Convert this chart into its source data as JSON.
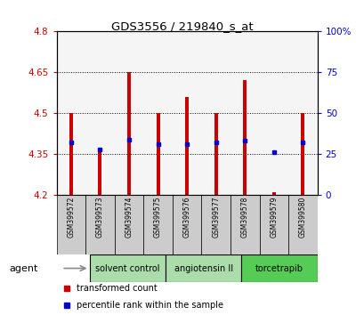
{
  "title": "GDS3556 / 219840_s_at",
  "samples": [
    "GSM399572",
    "GSM399573",
    "GSM399574",
    "GSM399575",
    "GSM399576",
    "GSM399577",
    "GSM399578",
    "GSM399579",
    "GSM399580"
  ],
  "transformed_count": [
    4.5,
    4.36,
    4.65,
    4.5,
    4.56,
    4.5,
    4.62,
    4.21,
    4.5
  ],
  "percentile_rank": [
    32,
    28,
    34,
    31,
    31,
    32,
    33,
    26,
    32
  ],
  "bar_bottom": 4.2,
  "ylim_left": [
    4.2,
    4.8
  ],
  "ylim_right": [
    0,
    100
  ],
  "yticks_left": [
    4.2,
    4.35,
    4.5,
    4.65,
    4.8
  ],
  "ytick_labels_left": [
    "4.2",
    "4.35",
    "4.5",
    "4.65",
    "4.8"
  ],
  "yticks_right": [
    0,
    25,
    50,
    75,
    100
  ],
  "ytick_labels_right": [
    "0",
    "25",
    "50",
    "75",
    "100%"
  ],
  "groups": [
    {
      "label": "solvent control",
      "indices": [
        0,
        1,
        2
      ],
      "color": "#aaddaa"
    },
    {
      "label": "angiotensin II",
      "indices": [
        3,
        4,
        5
      ],
      "color": "#aaddaa"
    },
    {
      "label": "torcetrapib",
      "indices": [
        6,
        7,
        8
      ],
      "color": "#55cc55"
    }
  ],
  "bar_color": "#cc0000",
  "dot_color": "#0000cc",
  "bar_width": 0.12,
  "grid_color": "#000000",
  "bg_color": "#ffffff",
  "plot_bg": "#f5f5f5",
  "agent_label": "agent",
  "legend_items": [
    {
      "color": "#cc0000",
      "label": "transformed count"
    },
    {
      "color": "#0000cc",
      "label": "percentile rank within the sample"
    }
  ]
}
